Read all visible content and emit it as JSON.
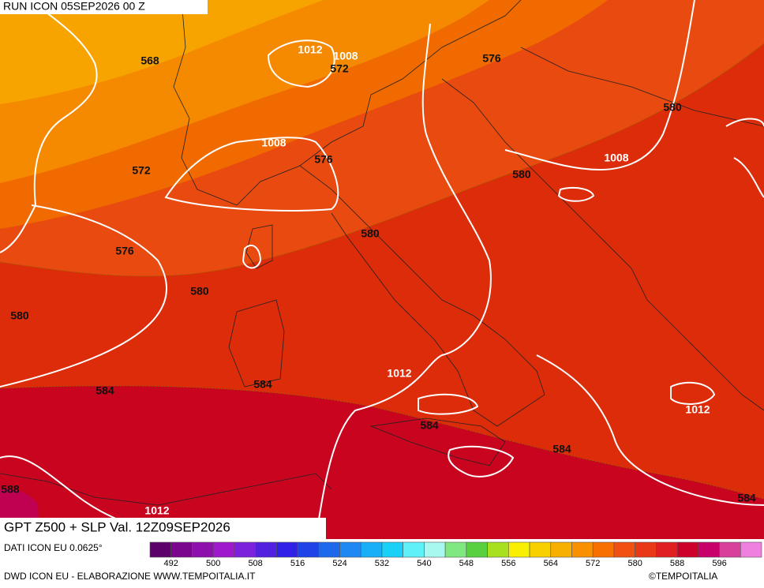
{
  "header": {
    "run": "RUN ICON 05SEP2026 00 Z",
    "field": "GPT Z500 + SLP Val. 12Z09SEP2026"
  },
  "contour_labels": [
    "568",
    "1012",
    "1008",
    "572",
    "576",
    "580",
    "572",
    "1008",
    "576",
    "580",
    "1008",
    "576",
    "580",
    "580",
    "580",
    "1012",
    "584",
    "584",
    "584",
    "584",
    "1012",
    "588",
    "1012",
    "584"
  ],
  "legend": {
    "colors": [
      "#5c006a",
      "#7a068e",
      "#8e10ac",
      "#a018cc",
      "#7c22dc",
      "#5420e0",
      "#3020e8",
      "#1e44e8",
      "#1e68ec",
      "#2088f2",
      "#18aef8",
      "#18d0f8",
      "#60f0f8",
      "#a8f8f0",
      "#80e880",
      "#58d040",
      "#a8e020",
      "#f8f000",
      "#f8d000",
      "#f8b000",
      "#f89000",
      "#f87000",
      "#f05010",
      "#e83818",
      "#e02020",
      "#cc0028",
      "#c8006a",
      "#d8409c",
      "#f080e0"
    ],
    "labels": [
      492,
      500,
      508,
      516,
      524,
      532,
      540,
      548,
      556,
      564,
      572,
      580,
      588,
      596
    ]
  },
  "footer": {
    "source": "DATI ICON EU 0.0625°",
    "credit": "DWD ICON EU - ELABORAZIONE WWW.TEMPOITALIA.IT",
    "brand": "©TEMPOITALIA"
  }
}
